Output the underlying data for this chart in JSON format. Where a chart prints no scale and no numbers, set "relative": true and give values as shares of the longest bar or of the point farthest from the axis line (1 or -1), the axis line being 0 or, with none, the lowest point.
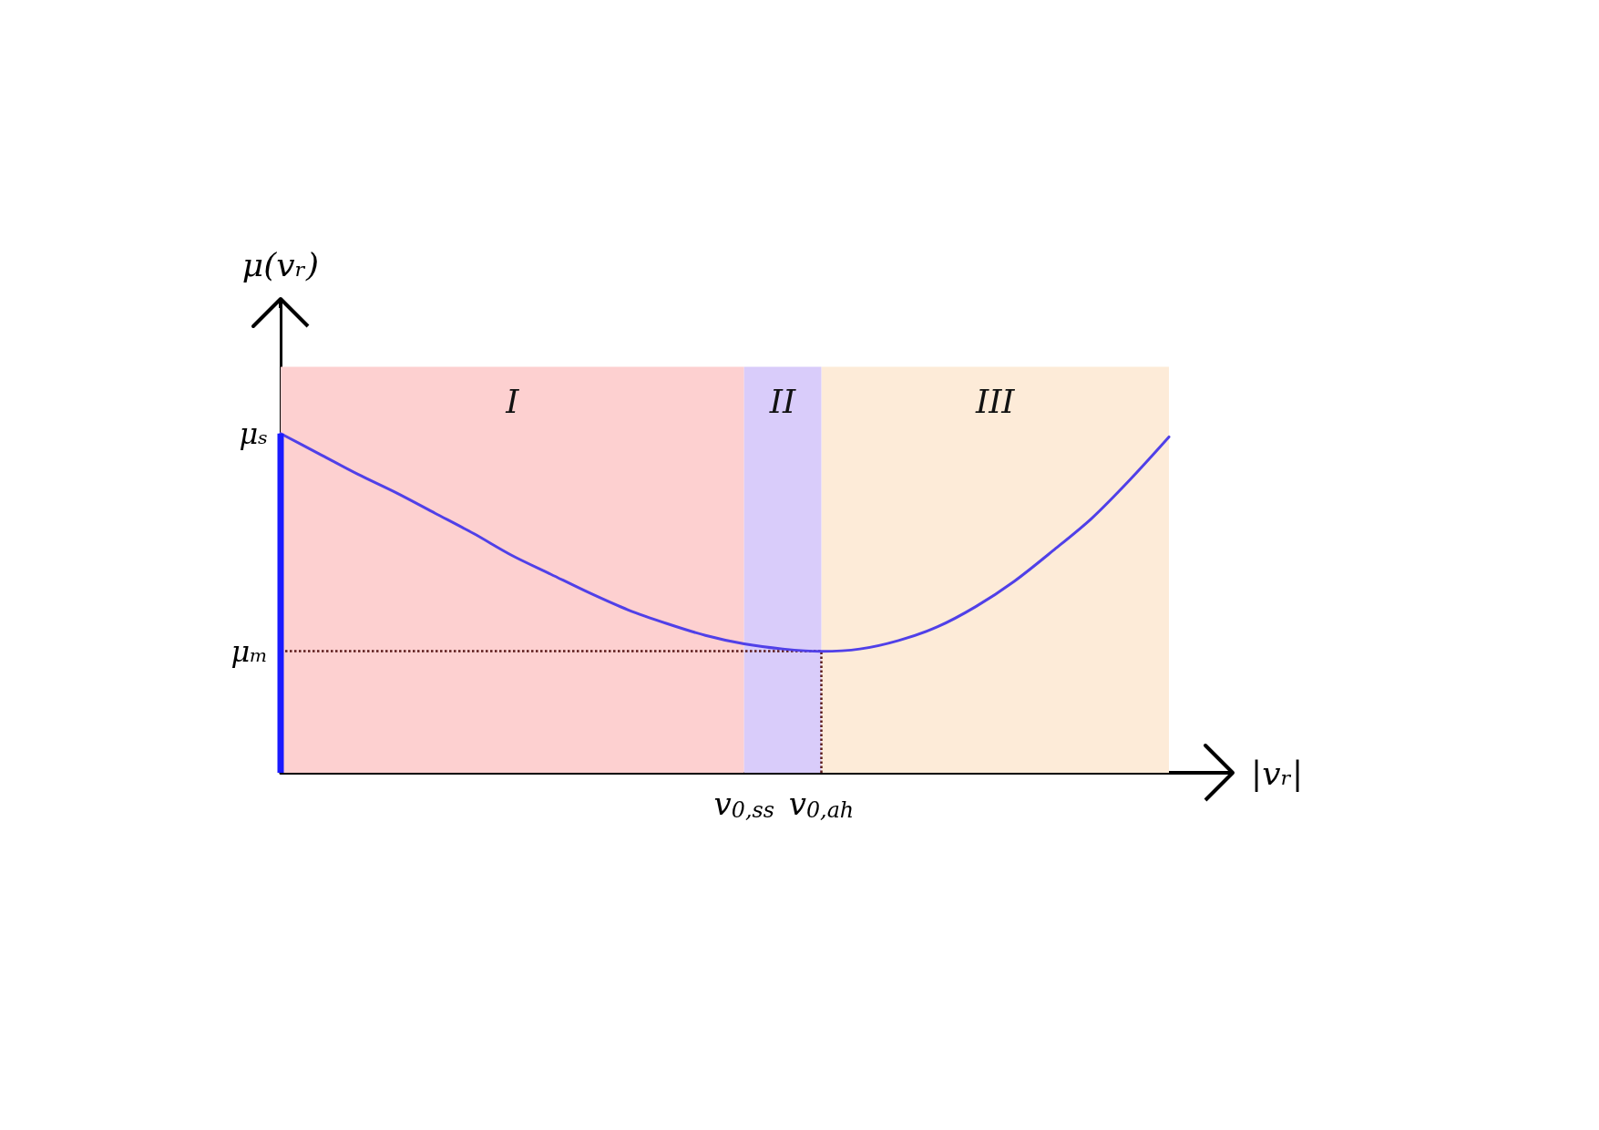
{
  "chart_data": {
    "type": "line",
    "relative": true,
    "xlabel": "|vᵣ|",
    "ylabel": "μ(vᵣ)",
    "categories": [
      null,
      null,
      null,
      null,
      null,
      null,
      null,
      null,
      null,
      null,
      null,
      null,
      "v$_{0,ss}$",
      null,
      "v$_{0,ah}$",
      null,
      null,
      null,
      null,
      null,
      null,
      null,
      null,
      null
    ],
    "series": [
      {
        "color": "#5040e8",
        "values": [
          1.0,
          0.94,
          0.88,
          0.825,
          0.765,
          0.705,
          0.64,
          0.585,
          0.53,
          0.48,
          0.44,
          0.405,
          0.38,
          0.365,
          0.358,
          0.365,
          0.39,
          0.43,
          0.49,
          0.565,
          0.655,
          0.75,
          0.865,
          0.99
        ]
      },
      {
        "type": "bar",
        "color": "#1a1aff",
        "values": [
          1.0,
          null,
          null,
          null,
          null,
          null,
          null,
          null,
          null,
          null,
          null,
          null,
          null,
          null,
          null,
          null,
          null,
          null,
          null,
          null,
          null,
          null,
          null,
          null
        ]
      }
    ],
    "ref_lines": [
      {
        "axis": "y",
        "value": 0.358,
        "label": "μₘ",
        "color": "#5a1a1a",
        "line_style": "dotted"
      },
      {
        "axis": "x",
        "value": "v$_{0,ah}$",
        "color": "#5a1a1a",
        "line_style": "dotted"
      }
    ],
    "annotations": [
      "μₛ",
      "I",
      "III"
    ],
    "bands": [
      {
        "axis": "x",
        "from": "v$_{0,ss}$",
        "to": "v$_{0,ah}$",
        "label": "II",
        "color": "#d9ccfa"
      }
    ],
    "grid": false,
    "marker": "none",
    "line_style": "solid"
  }
}
